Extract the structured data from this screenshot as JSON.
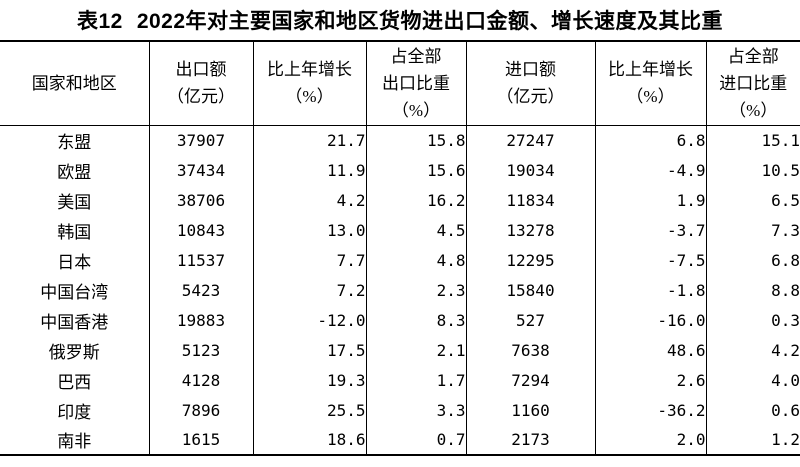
{
  "title": {
    "label": "表12",
    "text": "2022年对主要国家和地区货物进出口金额、增长速度及其比重"
  },
  "table": {
    "columns": [
      {
        "id": "region",
        "header_lines": [
          "国家和地区"
        ]
      },
      {
        "id": "export_value",
        "header_lines": [
          "出口额",
          "（亿元）"
        ]
      },
      {
        "id": "export_growth",
        "header_lines": [
          "比上年增长",
          "（%）"
        ]
      },
      {
        "id": "export_share",
        "header_lines": [
          "占全部",
          "出口比重",
          "（%）"
        ]
      },
      {
        "id": "import_value",
        "header_lines": [
          "进口额",
          "（亿元）"
        ]
      },
      {
        "id": "import_growth",
        "header_lines": [
          "比上年增长",
          "（%）"
        ]
      },
      {
        "id": "import_share",
        "header_lines": [
          "占全部",
          "进口比重",
          "（%）"
        ]
      }
    ],
    "rows": [
      [
        "东盟",
        "37907",
        "21.7",
        "15.8",
        "27247",
        "6.8",
        "15.1"
      ],
      [
        "欧盟",
        "37434",
        "11.9",
        "15.6",
        "19034",
        "-4.9",
        "10.5"
      ],
      [
        "美国",
        "38706",
        "4.2",
        "16.2",
        "11834",
        "1.9",
        "6.5"
      ],
      [
        "韩国",
        "10843",
        "13.0",
        "4.5",
        "13278",
        "-3.7",
        "7.3"
      ],
      [
        "日本",
        "11537",
        "7.7",
        "4.8",
        "12295",
        "-7.5",
        "6.8"
      ],
      [
        "中国台湾",
        "5423",
        "7.2",
        "2.3",
        "15840",
        "-1.8",
        "8.8"
      ],
      [
        "中国香港",
        "19883",
        "-12.0",
        "8.3",
        "527",
        "-16.0",
        "0.3"
      ],
      [
        "俄罗斯",
        "5123",
        "17.5",
        "2.1",
        "7638",
        "48.6",
        "4.2"
      ],
      [
        "巴西",
        "4128",
        "19.3",
        "1.7",
        "7294",
        "2.6",
        "4.0"
      ],
      [
        "印度",
        "7896",
        "25.5",
        "3.3",
        "1160",
        "-36.2",
        "0.6"
      ],
      [
        "南非",
        "1615",
        "18.6",
        "0.7",
        "2173",
        "2.0",
        "1.2"
      ]
    ]
  },
  "colors": {
    "text": "#000000",
    "border": "#000000",
    "background": "#ffffff"
  }
}
